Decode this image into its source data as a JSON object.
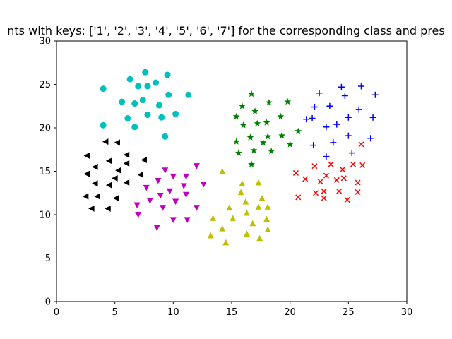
{
  "chart_data": {
    "type": "scatter",
    "title": "nts with keys: ['1', '2', '3', '4', '5', '6', '7'] for the corresponding class and pres",
    "xlabel": "",
    "ylabel": "",
    "xlim": [
      0,
      30
    ],
    "ylim": [
      0,
      30
    ],
    "xticks": [
      0,
      5,
      10,
      15,
      20,
      25,
      30
    ],
    "yticks": [
      0,
      5,
      10,
      15,
      20,
      25,
      30
    ],
    "xtick_labels": [
      "0",
      "5",
      "10",
      "15",
      "20",
      "25",
      "30"
    ],
    "ytick_labels": [
      "0",
      "5",
      "10",
      "15",
      "20",
      "25",
      "30"
    ],
    "grid": false,
    "series": [
      {
        "marker": "circle",
        "color": "#00bfbf",
        "points": [
          [
            4.0,
            24.5
          ],
          [
            6.3,
            25.6
          ],
          [
            7.0,
            24.8
          ],
          [
            7.6,
            26.4
          ],
          [
            7.8,
            24.8
          ],
          [
            8.5,
            25.2
          ],
          [
            9.5,
            26.1
          ],
          [
            4.0,
            20.3
          ],
          [
            5.6,
            23.0
          ],
          [
            6.7,
            22.8
          ],
          [
            7.4,
            23.2
          ],
          [
            6.1,
            21.1
          ],
          [
            6.7,
            20.1
          ],
          [
            7.8,
            21.5
          ],
          [
            8.8,
            22.6
          ],
          [
            9.0,
            21.2
          ],
          [
            9.6,
            23.8
          ],
          [
            10.2,
            21.6
          ],
          [
            11.3,
            23.8
          ],
          [
            9.3,
            19.0
          ]
        ]
      },
      {
        "marker": "star",
        "color": "#008000",
        "points": [
          [
            16.7,
            23.9
          ],
          [
            15.9,
            22.5
          ],
          [
            17.0,
            21.9
          ],
          [
            18.2,
            22.9
          ],
          [
            19.8,
            23.0
          ],
          [
            15.4,
            21.3
          ],
          [
            16.0,
            20.3
          ],
          [
            16.6,
            18.9
          ],
          [
            17.2,
            20.5
          ],
          [
            18.0,
            20.6
          ],
          [
            19.2,
            21.3
          ],
          [
            20.7,
            19.6
          ],
          [
            15.4,
            18.4
          ],
          [
            16.9,
            17.4
          ],
          [
            17.7,
            18.3
          ],
          [
            18.1,
            19.0
          ],
          [
            19.3,
            19.1
          ],
          [
            18.4,
            17.3
          ],
          [
            20.0,
            18.1
          ],
          [
            15.6,
            17.1
          ],
          [
            16.7,
            15.8
          ]
        ]
      },
      {
        "marker": "plus",
        "color": "#0000ff",
        "points": [
          [
            24.4,
            24.7
          ],
          [
            26.1,
            24.8
          ],
          [
            22.5,
            24.0
          ],
          [
            24.7,
            23.7
          ],
          [
            23.4,
            22.5
          ],
          [
            27.3,
            23.8
          ],
          [
            22.1,
            22.4
          ],
          [
            25.9,
            22.1
          ],
          [
            21.4,
            21.0
          ],
          [
            21.9,
            21.1
          ],
          [
            25.0,
            21.2
          ],
          [
            27.1,
            21.2
          ],
          [
            23.1,
            20.1
          ],
          [
            24.0,
            20.4
          ],
          [
            25.0,
            19.1
          ],
          [
            23.7,
            18.3
          ],
          [
            22.0,
            18.0
          ],
          [
            26.9,
            18.8
          ],
          [
            25.3,
            17.1
          ],
          [
            23.1,
            16.7
          ]
        ]
      },
      {
        "marker": "triangle-left",
        "color": "#000000",
        "points": [
          [
            4.2,
            18.4
          ],
          [
            5.2,
            18.3
          ],
          [
            2.6,
            16.8
          ],
          [
            6.0,
            16.9
          ],
          [
            4.5,
            16.2
          ],
          [
            6.0,
            15.9
          ],
          [
            7.5,
            16.3
          ],
          [
            3.3,
            15.5
          ],
          [
            5.3,
            15.1
          ],
          [
            2.6,
            14.7
          ],
          [
            5.0,
            14.2
          ],
          [
            7.2,
            14.6
          ],
          [
            4.5,
            13.4
          ],
          [
            3.3,
            13.6
          ],
          [
            6.0,
            13.7
          ],
          [
            2.5,
            12.1
          ],
          [
            3.5,
            12.1
          ],
          [
            5.1,
            11.9
          ],
          [
            3.0,
            10.7
          ],
          [
            4.4,
            10.7
          ]
        ]
      },
      {
        "marker": "triangle-down",
        "color": "#bf00bf",
        "points": [
          [
            12.0,
            15.6
          ],
          [
            9.3,
            15.1
          ],
          [
            10.0,
            14.4
          ],
          [
            11.1,
            14.4
          ],
          [
            8.7,
            13.9
          ],
          [
            10.9,
            13.3
          ],
          [
            12.6,
            13.5
          ],
          [
            7.7,
            13.1
          ],
          [
            9.7,
            12.7
          ],
          [
            8.9,
            12.2
          ],
          [
            11.1,
            12.3
          ],
          [
            8.0,
            11.6
          ],
          [
            10.2,
            11.5
          ],
          [
            6.9,
            11.1
          ],
          [
            9.1,
            10.8
          ],
          [
            12.0,
            10.8
          ],
          [
            7.0,
            10.0
          ],
          [
            10.0,
            9.4
          ],
          [
            11.2,
            9.4
          ],
          [
            8.6,
            8.5
          ]
        ]
      },
      {
        "marker": "x",
        "color": "#ff0000",
        "points": [
          [
            26.1,
            18.1
          ],
          [
            20.5,
            14.8
          ],
          [
            21.3,
            14.1
          ],
          [
            22.1,
            15.6
          ],
          [
            22.6,
            13.8
          ],
          [
            23.1,
            14.5
          ],
          [
            23.5,
            15.8
          ],
          [
            24.0,
            14.0
          ],
          [
            24.5,
            15.2
          ],
          [
            24.6,
            14.2
          ],
          [
            25.4,
            15.8
          ],
          [
            26.2,
            15.7
          ],
          [
            25.8,
            13.7
          ],
          [
            22.2,
            12.5
          ],
          [
            22.9,
            12.7
          ],
          [
            24.2,
            12.7
          ],
          [
            25.8,
            12.6
          ],
          [
            20.7,
            12.0
          ],
          [
            22.9,
            11.9
          ],
          [
            24.9,
            11.7
          ]
        ]
      },
      {
        "marker": "triangle-up",
        "color": "#bfbf00",
        "points": [
          [
            14.2,
            15.0
          ],
          [
            15.9,
            13.6
          ],
          [
            17.3,
            13.7
          ],
          [
            15.8,
            12.6
          ],
          [
            16.2,
            11.5
          ],
          [
            17.6,
            11.9
          ],
          [
            14.8,
            10.8
          ],
          [
            17.3,
            10.9
          ],
          [
            18.1,
            10.9
          ],
          [
            16.3,
            10.2
          ],
          [
            13.4,
            9.6
          ],
          [
            15.1,
            9.6
          ],
          [
            18.0,
            9.5
          ],
          [
            16.8,
            9.0
          ],
          [
            14.2,
            8.4
          ],
          [
            18.1,
            8.3
          ],
          [
            13.2,
            7.6
          ],
          [
            16.3,
            7.8
          ],
          [
            17.4,
            7.3
          ],
          [
            14.5,
            6.8
          ]
        ]
      }
    ]
  }
}
